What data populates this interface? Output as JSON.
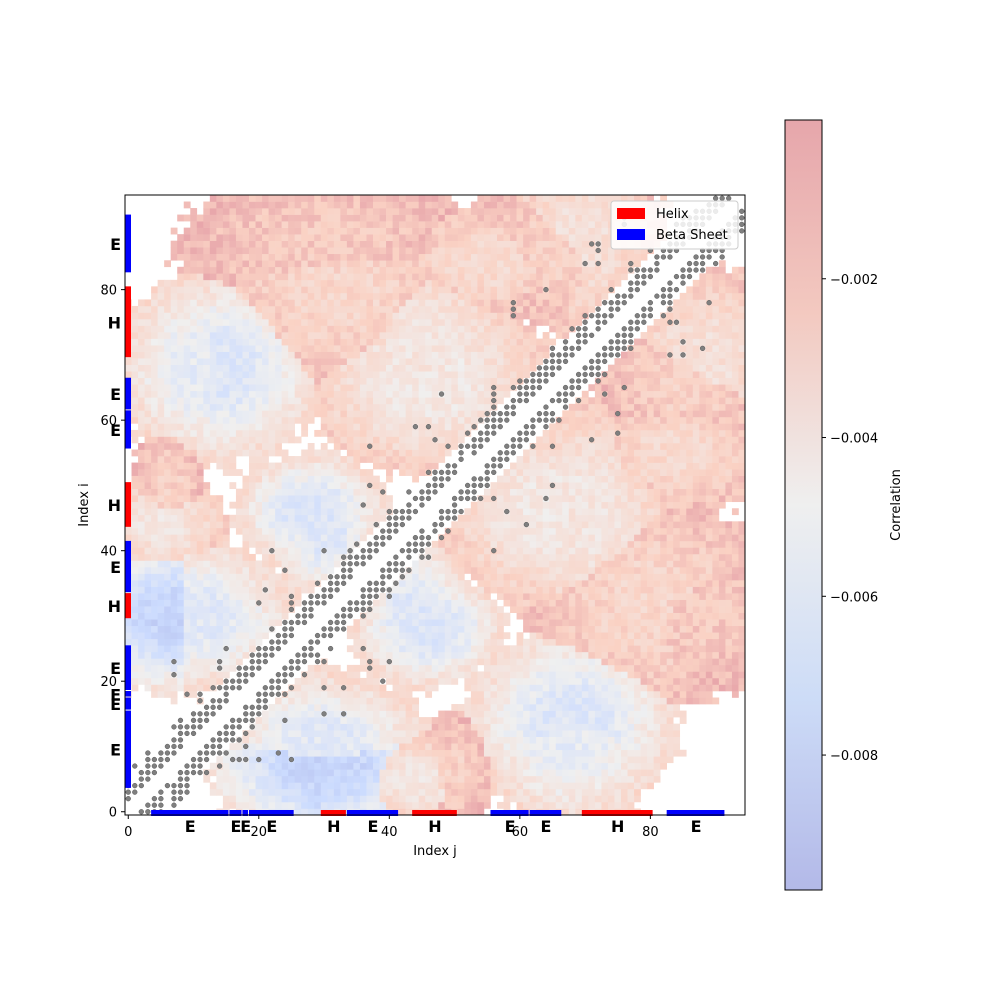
{
  "chart_data": {
    "type": "heatmap",
    "title": "",
    "xlabel": "Index j",
    "ylabel": "Index i",
    "size": 95,
    "xlim": [
      -0.5,
      94.5
    ],
    "ylim": [
      -0.5,
      94.5
    ],
    "x_ticks": [
      0,
      20,
      40,
      60,
      80
    ],
    "y_ticks": [
      0,
      20,
      40,
      60,
      80
    ],
    "colormap": "coolwarm",
    "colormap_alpha": 0.45,
    "colorbar": {
      "label": "Correlation",
      "vmin": -0.0097,
      "vmax": -0.0,
      "ticks": [
        -0.008,
        -0.006,
        -0.004,
        -0.002
      ],
      "tick_labels": [
        "−0.008",
        "−0.006",
        "−0.004",
        "−0.002"
      ]
    },
    "contact_marker_color": "#7f7f7f",
    "secondary_structure": [
      {
        "type": "E",
        "start": 4,
        "end": 15
      },
      {
        "type": "E",
        "start": 16,
        "end": 17
      },
      {
        "type": "E",
        "start": 18,
        "end": 18
      },
      {
        "type": "E",
        "start": 19,
        "end": 25
      },
      {
        "type": "H",
        "start": 30,
        "end": 33
      },
      {
        "type": "E",
        "start": 34,
        "end": 41
      },
      {
        "type": "H",
        "start": 44,
        "end": 50
      },
      {
        "type": "E",
        "start": 56,
        "end": 61
      },
      {
        "type": "E",
        "start": 62,
        "end": 66
      },
      {
        "type": "H",
        "start": 70,
        "end": 80
      },
      {
        "type": "E",
        "start": 83,
        "end": 91
      }
    ],
    "legend": {
      "position": "upper-right",
      "entries": [
        {
          "label": "Helix",
          "color": "#ff0000"
        },
        {
          "label": "Beta Sheet",
          "color": "#0000ff"
        }
      ]
    },
    "correlation_blobs": [
      {
        "x": 30,
        "y": 7,
        "rx": 12,
        "ry": 8,
        "v": -0.0075
      },
      {
        "x": 44,
        "y": 5,
        "rx": 7,
        "ry": 5,
        "v": -0.004
      },
      {
        "x": 10,
        "y": 30,
        "rx": 11,
        "ry": 8,
        "v": -0.0058
      },
      {
        "x": 3,
        "y": 28,
        "rx": 4,
        "ry": 5,
        "v": -0.0072
      },
      {
        "x": 30,
        "y": 44,
        "rx": 6,
        "ry": 8,
        "v": -0.006
      },
      {
        "x": 46,
        "y": 28,
        "rx": 8,
        "ry": 6,
        "v": -0.0062
      },
      {
        "x": 66,
        "y": 46,
        "rx": 13,
        "ry": 10,
        "v": -0.0042
      },
      {
        "x": 80,
        "y": 32,
        "rx": 13,
        "ry": 11,
        "v": -0.0028
      },
      {
        "x": 68,
        "y": 14,
        "rx": 11,
        "ry": 10,
        "v": -0.006
      },
      {
        "x": 12,
        "y": 68,
        "rx": 10,
        "ry": 10,
        "v": -0.0055
      },
      {
        "x": 6,
        "y": 50,
        "rx": 4,
        "ry": 6,
        "v": -0.0025
      },
      {
        "x": 46,
        "y": 69,
        "rx": 10,
        "ry": 12,
        "v": -0.004
      },
      {
        "x": 30,
        "y": 87,
        "rx": 15,
        "ry": 8,
        "v": -0.0022
      },
      {
        "x": 66,
        "y": 86,
        "rx": 10,
        "ry": 8,
        "v": -0.0025
      },
      {
        "x": 88,
        "y": 69,
        "rx": 9,
        "ry": 10,
        "v": -0.0035
      },
      {
        "x": 84,
        "y": 55,
        "rx": 10,
        "ry": 6,
        "v": -0.003
      }
    ]
  }
}
